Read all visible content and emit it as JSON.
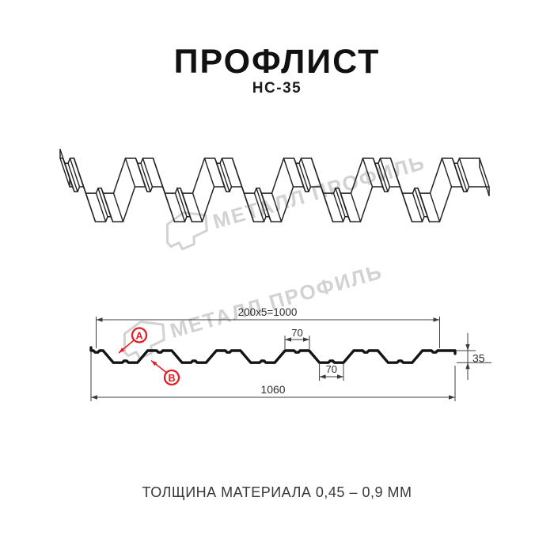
{
  "title": "ПРОФЛИСТ",
  "model": "НС-35",
  "watermark": {
    "text": "МЕТАЛЛ ПРОФИЛЬ"
  },
  "dimensions": {
    "working_width": "200x5=1000",
    "top_flange_width": "70",
    "bottom_flange_width": "70",
    "overall_width": "1060",
    "profile_height": "35"
  },
  "callouts": {
    "a": "А",
    "b": "В"
  },
  "footer": "ТОЛЩИНА МАТЕРИАЛА 0,45 – 0,9 ММ",
  "colors": {
    "line": "#232323",
    "section": "#141414",
    "dim": "#3c3c3c",
    "red": "#e31e24",
    "watermark": "#d2d2d2"
  }
}
